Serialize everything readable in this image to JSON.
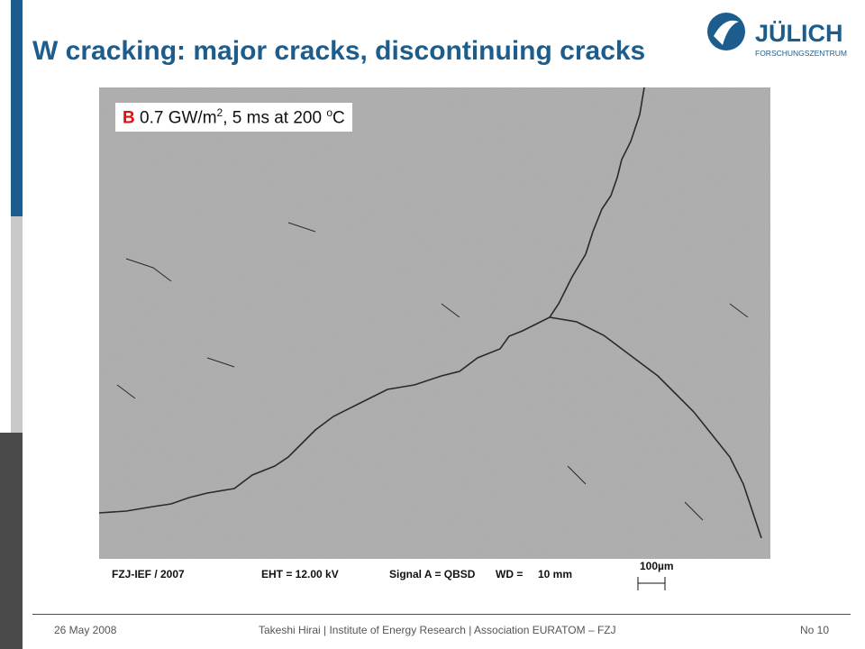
{
  "header": {
    "title": "W cracking: major cracks, discontinuing cracks",
    "logo_name": "JÜLICH",
    "logo_subtitle": "FORSCHUNGSZENTRUM"
  },
  "image_label": {
    "letter": "B",
    "text_a": "0.7 GW/m",
    "sup_a": "2",
    "text_b": ", 5 ms at 200 ",
    "sup_b": "o",
    "text_c": "C"
  },
  "sem_info": {
    "lab": "FZJ-IEF / 2007",
    "eht": "EHT = 12.00 kV",
    "signal": "Signal A = QBSD",
    "wd_label": "WD =",
    "wd_value": "10 mm",
    "scale": "100µm"
  },
  "footer": {
    "date": "26 May 2008",
    "author": "Takeshi Hirai | Institute of Energy Research | Association EURATOM – FZJ",
    "page": "No 10"
  }
}
